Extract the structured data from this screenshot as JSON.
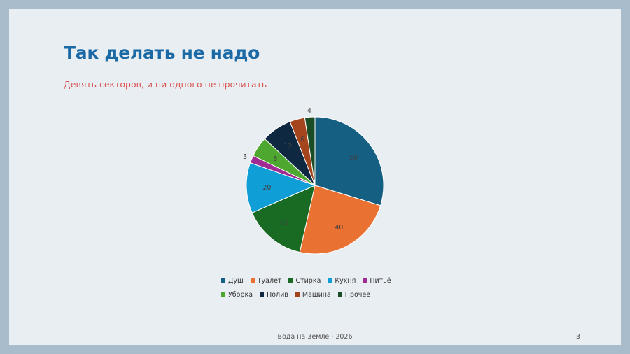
{
  "slide": {
    "title": "Так делать не надо",
    "subtitle": "Девять секторов, и ни одного не прочитать",
    "footer": "Вода на Земле · 2026",
    "page_number": "3"
  },
  "colors": {
    "background": "#a9bccb",
    "slide": "#e9eef3",
    "title": "#1b6aa5",
    "subtitle": "#d9534f"
  },
  "chart_data": {
    "type": "pie",
    "title": "",
    "categories": [
      "Душ",
      "Туалет",
      "Стирка",
      "Кухня",
      "Питьё",
      "Уборка",
      "Полив",
      "Машина",
      "Прочее"
    ],
    "values": [
      50,
      40,
      25,
      20,
      3,
      8,
      12,
      6,
      4
    ],
    "labels": [
      "50",
      "40",
      "25",
      "20",
      "3",
      "8",
      "12",
      "6",
      "4"
    ],
    "colors": [
      "#156082",
      "#e97132",
      "#196b24",
      "#0f9ed5",
      "#a02b93",
      "#4ea72e",
      "#0e2841",
      "#a5451d",
      "#1a4d26"
    ],
    "start_angle_deg": 0,
    "direction": "clockwise",
    "legend_position": "bottom",
    "legend_rows": [
      [
        "Душ",
        "Туалет",
        "Стирка",
        "Кухня",
        "Питьё"
      ],
      [
        "Уборка",
        "Полив",
        "Машина",
        "Прочее"
      ]
    ]
  }
}
